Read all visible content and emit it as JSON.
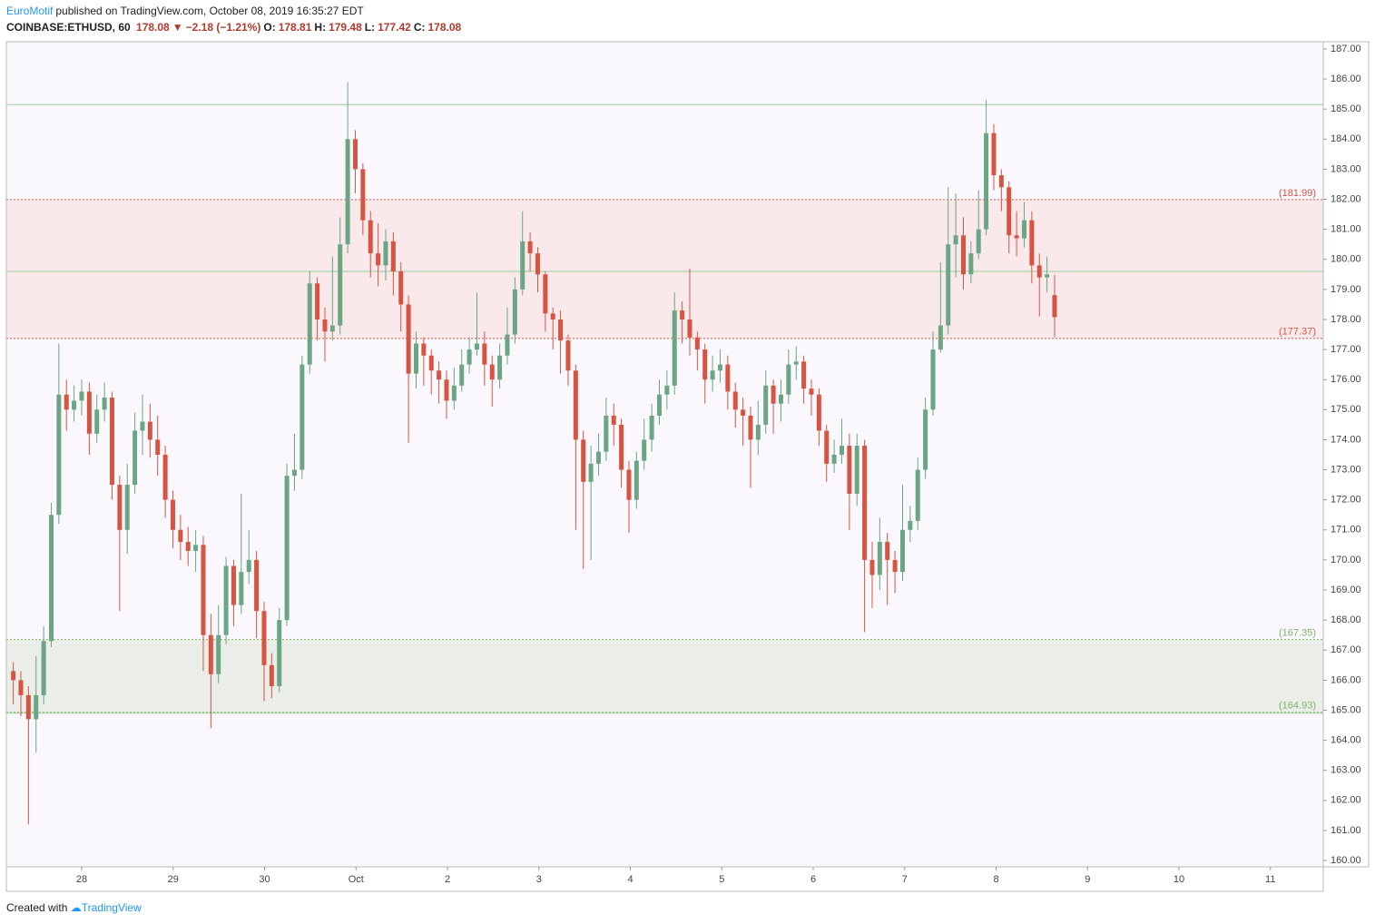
{
  "header": {
    "author": "EuroMotif",
    "published": "published on TradingView.com, October 08, 2019 16:35:27 EDT",
    "symbol": "COINBASE:ETHUSD, 60",
    "last": "178.08",
    "change": "−2.18 (−1.21%)",
    "ohlc": [
      {
        "key": "O:",
        "value": "178.81"
      },
      {
        "key": "H:",
        "value": "179.48"
      },
      {
        "key": "L:",
        "value": "177.42"
      },
      {
        "key": "C:",
        "value": "178.08"
      }
    ]
  },
  "footer": {
    "created": "Created with",
    "brand": "TradingView"
  },
  "chart_data": {
    "type": "candlestick",
    "up_color": "#6ba583",
    "down_color": "#d75442",
    "xtick_labels": [
      "28",
      "29",
      "30",
      "Oct",
      "2",
      "3",
      "4",
      "5",
      "6",
      "7",
      "8",
      "9",
      "10",
      "11"
    ],
    "ylim": [
      159.79,
      187.24
    ],
    "yticks": [
      {
        "value": 160,
        "label": "160.00"
      },
      {
        "value": 161,
        "label": "161.00"
      },
      {
        "value": 162,
        "label": "162.00"
      },
      {
        "value": 163,
        "label": "163.00"
      },
      {
        "value": 164,
        "label": "164.00"
      },
      {
        "value": 165,
        "label": "165.00"
      },
      {
        "value": 166,
        "label": "166.00"
      },
      {
        "value": 167,
        "label": "167.00"
      },
      {
        "value": 168,
        "label": "168.00"
      },
      {
        "value": 169,
        "label": "169.00"
      },
      {
        "value": 170,
        "label": "170.00"
      },
      {
        "value": 171,
        "label": "171.00"
      },
      {
        "value": 172,
        "label": "172.00"
      },
      {
        "value": 173,
        "label": "173.00"
      },
      {
        "value": 174,
        "label": "174.00"
      },
      {
        "value": 175,
        "label": "175.00"
      },
      {
        "value": 176,
        "label": "176.00"
      },
      {
        "value": 177,
        "label": "177.00"
      },
      {
        "value": 178,
        "label": "178.00"
      },
      {
        "value": 179,
        "label": "179.00"
      },
      {
        "value": 180,
        "label": "180.00"
      },
      {
        "value": 181,
        "label": "181.00"
      },
      {
        "value": 182,
        "label": "182.00"
      },
      {
        "value": 183,
        "label": "183.00"
      },
      {
        "value": 184,
        "label": "184.00"
      },
      {
        "value": 185,
        "label": "185.00"
      },
      {
        "value": 186,
        "label": "186.00"
      },
      {
        "value": 187,
        "label": "187.00"
      }
    ],
    "lines": {
      "color": "#9ccc9c",
      "values": [
        185.15,
        179.6,
        164.9
      ]
    },
    "zones": [
      {
        "color": "#d75442",
        "fill": "#f9e9ea",
        "bounds": [
          {
            "value": 177.37,
            "label": "(177.37)"
          },
          {
            "value": 181.99,
            "label": "(181.99)"
          }
        ]
      },
      {
        "color": "#7fb26a",
        "fill": "#ebede9",
        "bounds": [
          {
            "value": 164.93,
            "label": "(164.93)"
          },
          {
            "value": 167.35,
            "label": "(167.35)"
          }
        ]
      }
    ],
    "open": [
      166.3,
      166.0,
      165.5,
      164.7,
      165.5,
      167.3,
      171.5,
      175.5,
      175.0,
      175.3,
      175.6,
      174.2,
      175.0,
      175.4,
      172.5,
      171.0,
      172.5,
      174.3,
      174.6,
      174.0,
      173.5,
      172.0,
      171.0,
      170.6,
      170.3,
      170.5,
      167.5,
      166.2,
      167.5,
      169.8,
      168.5,
      169.6,
      170.0,
      168.3,
      166.5,
      165.8,
      168.0,
      172.8,
      173.0,
      176.5,
      179.2,
      178.0,
      177.6,
      177.8,
      180.5,
      184.0,
      183.0,
      181.3,
      180.2,
      179.8,
      180.6,
      179.6,
      178.5,
      176.2,
      177.2,
      176.8,
      176.3,
      176.0,
      175.3,
      175.8,
      176.5,
      177.0,
      177.2,
      176.5,
      176.0,
      176.8,
      177.5,
      179.0,
      180.6,
      180.2,
      179.5,
      178.2,
      178.0,
      177.3,
      176.3,
      174.0,
      172.6,
      173.2,
      173.6,
      174.8,
      174.5,
      173.0,
      172.0,
      173.3,
      174.0,
      174.8,
      175.5,
      175.8,
      178.3,
      178.0,
      177.4,
      177.0,
      176.0,
      176.3,
      176.5,
      175.6,
      175.0,
      174.8,
      174.0,
      174.5,
      175.8,
      175.2,
      175.5,
      176.5,
      176.6,
      175.7,
      175.5,
      174.3,
      173.2,
      173.5,
      173.8,
      172.2,
      173.8,
      170.0,
      169.5,
      170.6,
      170.0,
      169.6,
      171.0,
      171.3,
      173.0,
      175.0,
      177.0,
      177.8,
      180.5,
      180.8,
      179.5,
      180.2,
      181.0,
      184.2,
      182.8,
      182.4,
      180.8,
      180.7,
      181.3,
      179.8,
      179.4,
      178.81
    ],
    "high": [
      166.6,
      166.3,
      165.8,
      166.8,
      167.8,
      171.9,
      177.2,
      176.0,
      175.8,
      176.0,
      175.9,
      175.5,
      175.9,
      175.6,
      172.8,
      173.2,
      174.9,
      175.5,
      175.2,
      174.8,
      173.8,
      172.3,
      171.5,
      171.1,
      171.0,
      170.8,
      168.2,
      168.5,
      170.1,
      170.0,
      172.2,
      171.0,
      170.3,
      168.6,
      166.9,
      168.4,
      173.2,
      174.2,
      176.8,
      179.6,
      179.4,
      178.4,
      180.1,
      181.4,
      185.9,
      184.3,
      183.2,
      181.6,
      181.2,
      181.0,
      180.9,
      179.9,
      178.8,
      177.6,
      177.4,
      177.0,
      176.6,
      176.3,
      176.4,
      177.0,
      177.4,
      178.9,
      177.6,
      176.8,
      177.2,
      178.4,
      179.4,
      181.6,
      180.9,
      180.4,
      179.6,
      178.4,
      178.3,
      177.5,
      176.5,
      174.3,
      173.8,
      174.2,
      175.4,
      175.2,
      174.7,
      173.3,
      173.6,
      174.7,
      175.2,
      176.0,
      176.3,
      178.9,
      178.6,
      179.7,
      177.6,
      177.2,
      176.8,
      177.0,
      176.8,
      175.9,
      175.4,
      175.1,
      175.3,
      176.3,
      176.0,
      176.0,
      177.0,
      177.1,
      176.8,
      176.0,
      175.7,
      174.5,
      174.0,
      174.7,
      174.2,
      174.2,
      174.0,
      170.6,
      171.4,
      170.9,
      170.3,
      172.5,
      171.8,
      173.4,
      175.4,
      177.6,
      179.9,
      182.4,
      182.2,
      181.4,
      180.6,
      182.3,
      185.3,
      184.5,
      183.0,
      182.6,
      181.6,
      181.9,
      181.6,
      180.2,
      180.1,
      179.48
    ],
    "low": [
      165.2,
      164.8,
      161.2,
      163.6,
      165.2,
      167.1,
      171.2,
      174.3,
      174.6,
      174.8,
      173.5,
      173.9,
      174.6,
      172.0,
      168.3,
      170.2,
      172.2,
      173.5,
      173.4,
      172.8,
      171.4,
      170.4,
      170.0,
      169.8,
      169.6,
      166.3,
      164.4,
      165.9,
      167.2,
      167.8,
      168.2,
      169.2,
      167.4,
      165.3,
      165.4,
      165.6,
      167.8,
      172.3,
      172.7,
      176.2,
      177.3,
      176.6,
      177.3,
      177.5,
      180.2,
      182.2,
      180.8,
      179.4,
      179.1,
      179.3,
      178.8,
      177.6,
      173.9,
      175.7,
      175.8,
      175.5,
      175.2,
      174.7,
      175.0,
      175.6,
      176.2,
      176.8,
      175.8,
      175.1,
      175.7,
      176.5,
      177.2,
      178.8,
      179.6,
      178.9,
      177.6,
      177.0,
      176.2,
      175.8,
      171.0,
      169.7,
      170.0,
      172.8,
      173.3,
      173.8,
      172.4,
      170.9,
      171.7,
      173.0,
      173.6,
      174.5,
      175.0,
      175.5,
      177.2,
      176.8,
      176.3,
      175.2,
      175.6,
      175.9,
      175.0,
      174.4,
      173.8,
      172.4,
      173.5,
      174.2,
      174.2,
      174.6,
      175.2,
      176.0,
      175.2,
      174.8,
      173.8,
      172.6,
      172.9,
      173.2,
      171.0,
      171.8,
      167.6,
      168.4,
      169.0,
      168.5,
      168.9,
      169.3,
      170.6,
      171.0,
      172.7,
      174.8,
      176.9,
      177.5,
      179.4,
      179.0,
      179.2,
      180.0,
      180.8,
      182.3,
      181.6,
      180.2,
      180.1,
      180.4,
      179.2,
      178.1,
      178.9,
      177.42
    ],
    "close": [
      166.0,
      165.5,
      164.7,
      165.5,
      167.3,
      171.5,
      175.5,
      175.0,
      175.3,
      175.6,
      174.2,
      175.0,
      175.4,
      172.5,
      171.0,
      172.5,
      174.3,
      174.6,
      174.0,
      173.5,
      172.0,
      171.0,
      170.6,
      170.3,
      170.5,
      167.5,
      166.2,
      167.5,
      169.8,
      168.5,
      169.6,
      170.0,
      168.3,
      166.5,
      165.8,
      168.0,
      172.8,
      173.0,
      176.5,
      179.2,
      178.0,
      177.6,
      177.8,
      180.5,
      184.0,
      183.0,
      181.3,
      180.2,
      179.8,
      180.6,
      179.6,
      178.5,
      176.2,
      177.2,
      176.8,
      176.3,
      176.0,
      175.3,
      175.8,
      176.5,
      177.0,
      177.2,
      176.5,
      176.0,
      176.8,
      177.5,
      179.0,
      180.6,
      180.2,
      179.5,
      178.2,
      178.0,
      177.3,
      176.3,
      174.0,
      172.6,
      173.2,
      173.6,
      174.8,
      174.5,
      173.0,
      172.0,
      173.3,
      174.0,
      174.8,
      175.5,
      175.8,
      178.3,
      178.0,
      177.4,
      177.0,
      176.0,
      176.3,
      176.5,
      175.6,
      175.0,
      174.8,
      174.0,
      174.5,
      175.8,
      175.2,
      175.5,
      176.5,
      176.6,
      175.7,
      175.5,
      174.3,
      173.2,
      173.5,
      173.8,
      172.2,
      173.8,
      170.0,
      169.5,
      170.6,
      170.0,
      169.6,
      171.0,
      171.3,
      173.0,
      175.0,
      177.0,
      177.8,
      180.5,
      180.8,
      179.5,
      180.2,
      181.0,
      184.2,
      182.8,
      182.4,
      180.8,
      180.7,
      181.3,
      179.8,
      179.4,
      179.5,
      178.08
    ]
  }
}
